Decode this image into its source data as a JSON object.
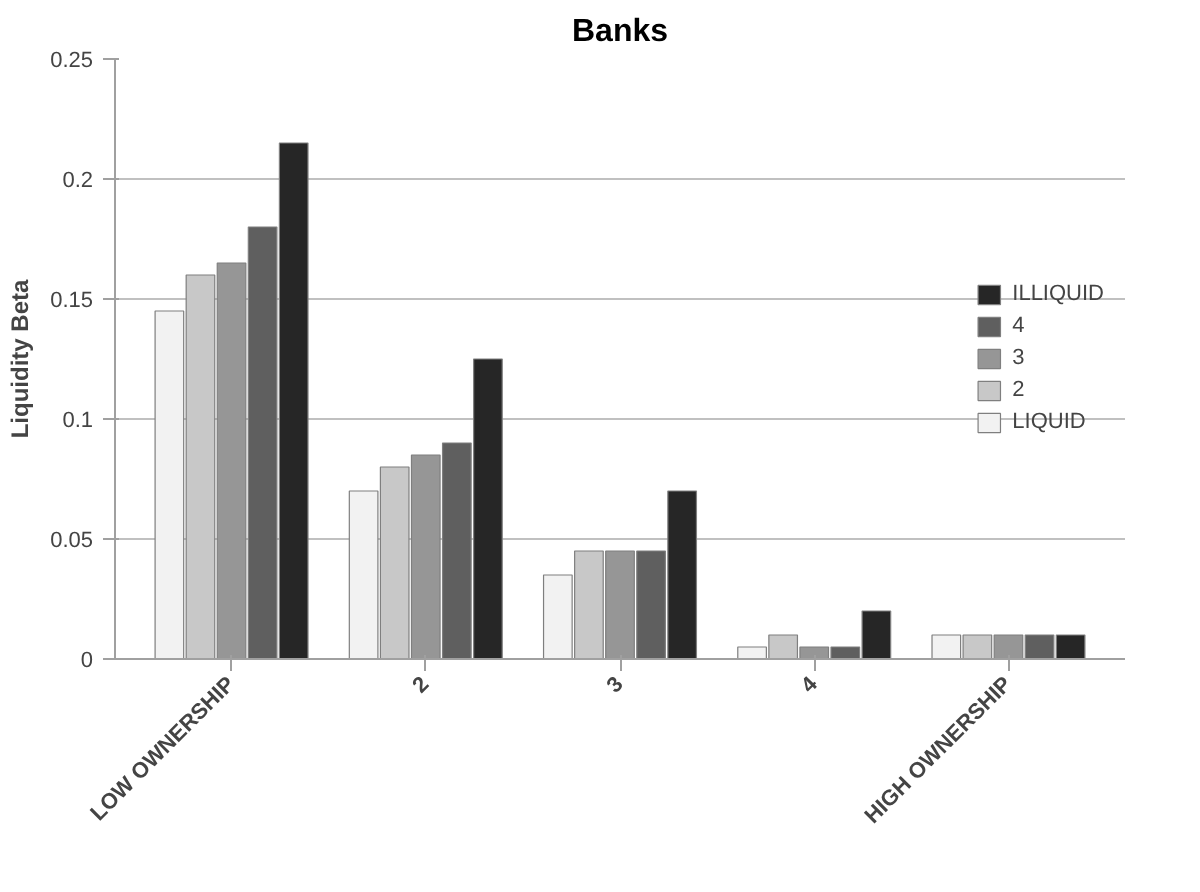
{
  "chart_data": {
    "type": "bar",
    "title": "Banks",
    "ylabel": "Liquidity Beta",
    "categories": [
      "LOW OWNERSHIP",
      "2",
      "3",
      "4",
      "HIGH OWNERSHIP"
    ],
    "series": [
      {
        "name": "LIQUID",
        "color": "#f2f2f2",
        "values": [
          0.145,
          0.07,
          0.035,
          0.005,
          0.01
        ]
      },
      {
        "name": "2",
        "color": "#c8c8c8",
        "values": [
          0.16,
          0.08,
          0.045,
          0.01,
          0.01
        ]
      },
      {
        "name": "3",
        "color": "#969696",
        "values": [
          0.165,
          0.085,
          0.045,
          0.005,
          0.01
        ]
      },
      {
        "name": "4",
        "color": "#5f5f5f",
        "values": [
          0.18,
          0.09,
          0.045,
          0.005,
          0.01
        ]
      },
      {
        "name": "ILLIQUID",
        "color": "#262626",
        "values": [
          0.215,
          0.125,
          0.07,
          0.02,
          0.01
        ]
      }
    ],
    "ylim": [
      0,
      0.25
    ],
    "yticks": [
      0,
      0.05,
      0.1,
      0.15,
      0.2,
      0.25
    ],
    "grid": "y",
    "legend": "right"
  }
}
